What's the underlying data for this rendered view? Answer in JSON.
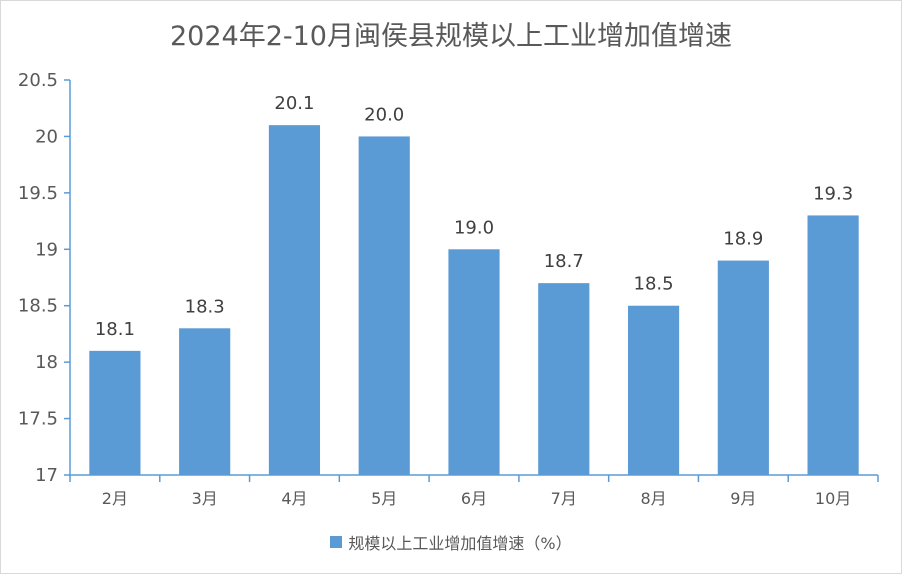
{
  "chart_data": {
    "type": "bar",
    "title": "2024年2-10月闽侯县规模以上工业增加值增速",
    "categories": [
      "2月",
      "3月",
      "4月",
      "5月",
      "6月",
      "7月",
      "8月",
      "9月",
      "10月"
    ],
    "series": [
      {
        "name": "规模以上工业增加值增速（%）",
        "values": [
          18.1,
          18.3,
          20.1,
          20.0,
          19.0,
          18.7,
          18.5,
          18.9,
          19.3
        ],
        "data_labels": [
          "18.1",
          "18.3",
          "20.1",
          "20.0",
          "19.0",
          "18.7",
          "18.5",
          "18.9",
          "19.3"
        ]
      }
    ],
    "ylim": [
      17,
      20.5
    ],
    "yticks": [
      "17",
      "17.5",
      "18",
      "18.5",
      "19",
      "19.5",
      "20",
      "20.5"
    ],
    "ytick_values": [
      17,
      17.5,
      18,
      18.5,
      19,
      19.5,
      20,
      20.5
    ],
    "xlabel": "",
    "ylabel": "",
    "grid": false,
    "legend_position": "bottom",
    "colors": {
      "bar": "#5b9bd5",
      "axis": "#5b9bd5"
    }
  }
}
